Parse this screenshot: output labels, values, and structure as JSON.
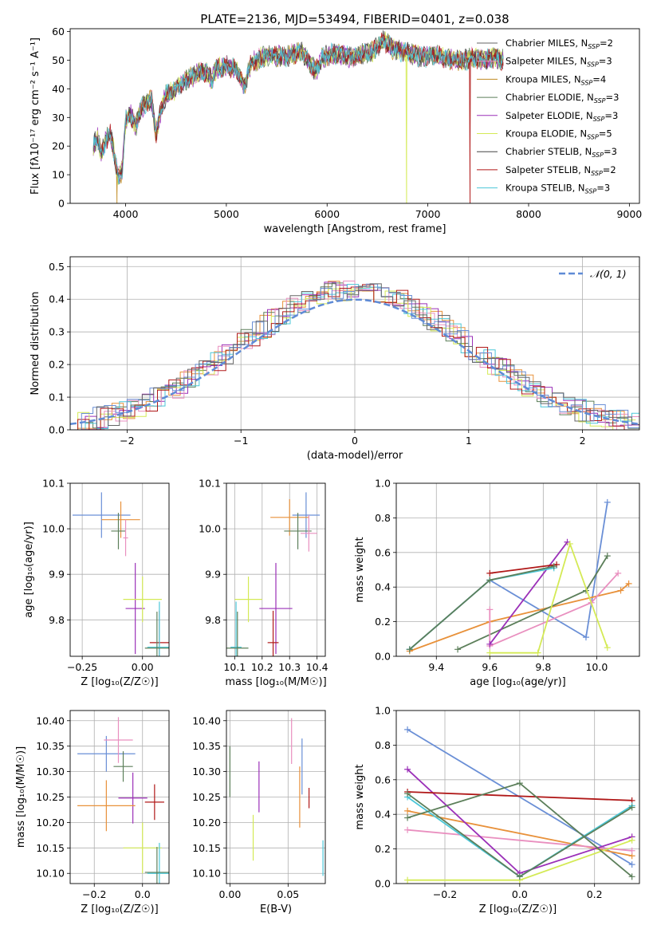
{
  "figure_title": "PLATE=2136, MJD=53494, FIBERID=0401, z=0.038",
  "colors": {
    "c0": "#6a8fd6",
    "c1": "#e8913a",
    "c2": "#5c7f5a",
    "c3": "#9b30b8",
    "c4": "#d4ea55",
    "c5": "#e98fbf",
    "c6": "#4bc7d8",
    "c7": "#b01818",
    "c8": "#666666",
    "normal": "#5f8bd6",
    "grid": "#b0b0b0"
  },
  "chart_data": [
    {
      "id": "spectrum",
      "type": "line",
      "title": "PLATE=2136, MJD=53494, FIBERID=0401, z=0.038",
      "xlabel": "wavelength [Angstrom, rest frame]",
      "ylabel": "Flux [fλ10⁻¹⁷ erg cm⁻² s⁻¹ A⁻¹]",
      "xlim": [
        3450,
        9100
      ],
      "ylim": [
        0,
        61
      ],
      "xticks": [
        4000,
        5000,
        6000,
        7000,
        8000,
        9000
      ],
      "yticks": [
        0,
        10,
        20,
        30,
        40,
        50,
        60
      ],
      "grid": false,
      "legend_position": "top-right",
      "legend": [
        {
          "label": "Chabrier MILES, N",
          "sub": "SSP",
          "tail": "=2",
          "color": "#666666"
        },
        {
          "label": "Salpeter MILES, N",
          "sub": "SSP",
          "tail": "=3",
          "color": "#e98fbf"
        },
        {
          "label": "Kroupa MILES, N",
          "sub": "SSP",
          "tail": "=4",
          "color": "#c08a20"
        },
        {
          "label": "Chabrier ELODIE, N",
          "sub": "SSP",
          "tail": "=3",
          "color": "#5c7f5a"
        },
        {
          "label": "Salpeter ELODIE, N",
          "sub": "SSP",
          "tail": "=3",
          "color": "#9b30b8"
        },
        {
          "label": "Kroupa ELODIE, N",
          "sub": "SSP",
          "tail": "=5",
          "color": "#d4ea55"
        },
        {
          "label": "Chabrier STELIB, N",
          "sub": "SSP",
          "tail": "=3",
          "color": "#444444"
        },
        {
          "label": "Salpeter STELIB, N",
          "sub": "SSP",
          "tail": "=2",
          "color": "#b01818"
        },
        {
          "label": "Kroupa STELIB, N",
          "sub": "SSP",
          "tail": "=3",
          "color": "#4bc7d8"
        }
      ],
      "spectrum_profile": {
        "x": [
          3680,
          3720,
          3760,
          3800,
          3850,
          3900,
          3933,
          3968,
          4000,
          4050,
          4102,
          4150,
          4200,
          4260,
          4300,
          4340,
          4400,
          4500,
          4600,
          4700,
          4800,
          4861,
          4900,
          5000,
          5100,
          5175,
          5250,
          5350,
          5450,
          5550,
          5650,
          5750,
          5890,
          5950,
          6050,
          6150,
          6250,
          6350,
          6450,
          6563,
          6650,
          6750,
          6850,
          6950,
          7050,
          7150,
          7250,
          7350,
          7450,
          7550,
          7650,
          7750
        ],
        "y": [
          20,
          23,
          17,
          22,
          24,
          15,
          8,
          12,
          29,
          31,
          27,
          33,
          35,
          36,
          24,
          31,
          38,
          40,
          43,
          45,
          46,
          43,
          47,
          48,
          47,
          41,
          49,
          51,
          52,
          51,
          52,
          53,
          46,
          51,
          52,
          52,
          51,
          52,
          53,
          57,
          54,
          53,
          52,
          51,
          52,
          51,
          50,
          50,
          51,
          50,
          51,
          50
        ]
      },
      "drops": [
        {
          "x": 3915,
          "to": 0,
          "series": "Kroupa MILES"
        },
        {
          "x": 6790,
          "to": 0,
          "series": "Kroupa ELODIE"
        },
        {
          "x": 7420,
          "to": 0,
          "series": "Salpeter STELIB"
        }
      ]
    },
    {
      "id": "residuals",
      "type": "histogram",
      "xlabel": "(data-model)/error",
      "ylabel": "Normed distribution",
      "xlim": [
        -2.5,
        2.5
      ],
      "ylim": [
        0,
        0.53
      ],
      "xticks": [
        -2,
        -1,
        0,
        1,
        2
      ],
      "yticks": [
        0.0,
        0.1,
        0.2,
        0.3,
        0.4,
        0.5
      ],
      "grid": true,
      "legend_position": "top-right",
      "legend": [
        {
          "label": "𝒩(0, 1)",
          "color": "#5f8bd6",
          "style": "dashed"
        }
      ],
      "bin_width": 0.1,
      "normal_curve": {
        "mean": 0,
        "sigma": 1
      }
    },
    {
      "id": "age-vs-Z",
      "type": "errorbar",
      "xlabel": "Z [log₁₀(Z/Z☉)]",
      "ylabel": "age  [log₁₀(age/yr)]",
      "xlim": [
        -0.3,
        0.11
      ],
      "ylim": [
        9.72,
        10.1
      ],
      "xticks": [
        -0.25,
        0.0
      ],
      "yticks": [
        9.8,
        9.9,
        10.0,
        10.1
      ],
      "grid": true,
      "points": [
        {
          "x": -0.17,
          "xerr": 0.12,
          "y": 10.03,
          "yerr": 0.05,
          "color": "#6a8fd6"
        },
        {
          "x": -0.09,
          "xerr": 0.08,
          "y": 10.02,
          "yerr": 0.04,
          "color": "#e8913a"
        },
        {
          "x": -0.1,
          "xerr": 0.03,
          "y": 9.995,
          "yerr": 0.04,
          "color": "#5c7f5a"
        },
        {
          "x": -0.07,
          "xerr": 0.01,
          "y": 9.98,
          "yerr": 0.04,
          "color": "#e98fbf"
        },
        {
          "x": -0.03,
          "xerr": 0.04,
          "y": 9.825,
          "yerr": 0.1,
          "color": "#9b30b8"
        },
        {
          "x": 0.0,
          "xerr": 0.08,
          "y": 9.845,
          "yerr": 0.05,
          "color": "#d4ea55"
        },
        {
          "x": 0.07,
          "xerr": 0.04,
          "y": 9.75,
          "yerr": 0.07,
          "color": "#b01818"
        },
        {
          "x": 0.07,
          "xerr": 0.05,
          "y": 9.74,
          "yerr": 0.1,
          "color": "#4bc7d8"
        },
        {
          "x": 0.06,
          "xerr": 0.05,
          "y": 9.738,
          "yerr": 0.08,
          "color": "#5c7f5a"
        }
      ]
    },
    {
      "id": "age-vs-mass",
      "type": "errorbar",
      "xlabel": "mass [log₁₀(M/M☉)]",
      "ylabel": "",
      "xlim": [
        10.07,
        10.43
      ],
      "ylim": [
        9.72,
        10.1
      ],
      "xticks": [
        10.1,
        10.2,
        10.3,
        10.4
      ],
      "yticks": [
        9.8,
        9.9,
        10.0,
        10.1
      ],
      "grid": true,
      "points": [
        {
          "x": 10.36,
          "xerr": 0.05,
          "y": 10.03,
          "yerr": 0.05,
          "color": "#6a8fd6"
        },
        {
          "x": 10.3,
          "xerr": 0.07,
          "y": 10.025,
          "yerr": 0.04,
          "color": "#e8913a"
        },
        {
          "x": 10.33,
          "xerr": 0.05,
          "y": 9.995,
          "yerr": 0.04,
          "color": "#5c7f5a"
        },
        {
          "x": 10.37,
          "xerr": 0.03,
          "y": 9.99,
          "yerr": 0.04,
          "color": "#e98fbf"
        },
        {
          "x": 10.25,
          "xerr": 0.06,
          "y": 9.825,
          "yerr": 0.1,
          "color": "#9b30b8"
        },
        {
          "x": 10.15,
          "xerr": 0.05,
          "y": 9.845,
          "yerr": 0.05,
          "color": "#d4ea55"
        },
        {
          "x": 10.24,
          "xerr": 0.02,
          "y": 9.75,
          "yerr": 0.07,
          "color": "#b01818"
        },
        {
          "x": 10.105,
          "xerr": 0.02,
          "y": 9.74,
          "yerr": 0.1,
          "color": "#4bc7d8"
        },
        {
          "x": 10.11,
          "xerr": 0.04,
          "y": 9.738,
          "yerr": 0.08,
          "color": "#5c7f5a"
        }
      ]
    },
    {
      "id": "weight-vs-age",
      "type": "line",
      "xlabel": "age  [log₁₀(age/yr)]",
      "ylabel": "mass weight",
      "xlim": [
        9.25,
        10.16
      ],
      "ylim": [
        0,
        1
      ],
      "xticks": [
        9.4,
        9.6,
        9.8,
        10.0
      ],
      "yticks": [
        0.0,
        0.2,
        0.4,
        0.6,
        0.8,
        1.0
      ],
      "grid": true,
      "series": [
        {
          "color": "#6a8fd6",
          "x": [
            9.3,
            9.6,
            9.96,
            10.04
          ],
          "y": [
            0.04,
            0.44,
            0.11,
            0.89
          ]
        },
        {
          "color": "#e8913a",
          "x": [
            9.3,
            9.6,
            10.09,
            10.12
          ],
          "y": [
            0.03,
            0.2,
            0.38,
            0.42
          ]
        },
        {
          "color": "#5c7f5a",
          "x": [
            9.48,
            9.96,
            10.04
          ],
          "y": [
            0.04,
            0.38,
            0.58
          ]
        },
        {
          "color": "#e98fbf",
          "x": [
            9.6,
            9.6,
            9.98,
            10.08
          ],
          "y": [
            0.27,
            0.06,
            0.31,
            0.48
          ]
        },
        {
          "color": "#9b30b8",
          "x": [
            9.6,
            9.89
          ],
          "y": [
            0.07,
            0.66
          ]
        },
        {
          "color": "#d4ea55",
          "x": [
            9.6,
            9.78,
            9.9,
            10.04
          ],
          "y": [
            0.02,
            0.02,
            0.65,
            0.05
          ]
        },
        {
          "color": "#b01818",
          "x": [
            9.6,
            9.85
          ],
          "y": [
            0.48,
            0.53
          ]
        },
        {
          "color": "#4bc7d8",
          "x": [
            9.3,
            9.6,
            9.84
          ],
          "y": [
            0.04,
            0.44,
            0.51
          ]
        },
        {
          "color": "#5c7f5a",
          "x": [
            9.3,
            9.6,
            9.84
          ],
          "y": [
            0.04,
            0.44,
            0.52
          ]
        }
      ]
    },
    {
      "id": "mass-vs-Z",
      "type": "errorbar",
      "xlabel": "Z [log₁₀(Z/Z☉)]",
      "ylabel": "mass [log₁₀(M/M☉)]",
      "xlim": [
        -0.3,
        0.11
      ],
      "ylim": [
        10.08,
        10.42
      ],
      "xticks": [
        -0.2,
        0.0
      ],
      "yticks": [
        10.1,
        10.15,
        10.2,
        10.25,
        10.3,
        10.35,
        10.4
      ],
      "grid": true,
      "points": [
        {
          "x": -0.15,
          "xerr": 0.12,
          "y": 10.335,
          "yerr": 0.035,
          "color": "#6a8fd6"
        },
        {
          "x": -0.1,
          "xerr": 0.06,
          "y": 10.362,
          "yerr": 0.045,
          "color": "#e98fbf"
        },
        {
          "x": -0.08,
          "xerr": 0.04,
          "y": 10.31,
          "yerr": 0.03,
          "color": "#5c7f5a"
        },
        {
          "x": -0.04,
          "xerr": 0.06,
          "y": 10.248,
          "yerr": 0.05,
          "color": "#9b30b8"
        },
        {
          "x": -0.15,
          "xerr": 0.12,
          "y": 10.233,
          "yerr": 0.05,
          "color": "#e8913a"
        },
        {
          "x": 0.0,
          "xerr": 0.08,
          "y": 10.15,
          "yerr": 0.05,
          "color": "#d4ea55"
        },
        {
          "x": 0.05,
          "xerr": 0.04,
          "y": 10.24,
          "yerr": 0.035,
          "color": "#b01818"
        },
        {
          "x": 0.07,
          "xerr": 0.05,
          "y": 10.1,
          "yerr": 0.06,
          "color": "#4bc7d8"
        },
        {
          "x": 0.06,
          "xerr": 0.05,
          "y": 10.102,
          "yerr": 0.05,
          "color": "#5c7f5a"
        }
      ]
    },
    {
      "id": "mass-vs-ebv",
      "type": "errorbar",
      "xlabel": "E(B-V)",
      "ylabel": "",
      "xlim": [
        -0.003,
        0.082
      ],
      "ylim": [
        10.08,
        10.42
      ],
      "xticks": [
        0.0,
        0.05
      ],
      "yticks": [
        10.1,
        10.15,
        10.2,
        10.25,
        10.3,
        10.35,
        10.4
      ],
      "grid": true,
      "points": [
        {
          "x": 0.0,
          "y": 10.3,
          "yerr": 0.05,
          "color": "#5c7f5a"
        },
        {
          "x": 0.02,
          "y": 10.17,
          "yerr": 0.045,
          "color": "#d4ea55"
        },
        {
          "x": 0.025,
          "y": 10.27,
          "yerr": 0.05,
          "color": "#9b30b8"
        },
        {
          "x": 0.053,
          "y": 10.36,
          "yerr": 0.045,
          "color": "#e98fbf"
        },
        {
          "x": 0.06,
          "y": 10.25,
          "yerr": 0.06,
          "color": "#e8913a"
        },
        {
          "x": 0.062,
          "y": 10.31,
          "yerr": 0.055,
          "color": "#6a8fd6"
        },
        {
          "x": 0.068,
          "y": 10.248,
          "yerr": 0.02,
          "color": "#b01818"
        },
        {
          "x": 0.08,
          "y": 10.13,
          "yerr": 0.035,
          "color": "#4bc7d8"
        }
      ]
    },
    {
      "id": "weight-vs-Z",
      "type": "line",
      "xlabel": "Z [log₁₀(Z/Z☉)]",
      "ylabel": "mass weight",
      "xlim": [
        -0.33,
        0.32
      ],
      "ylim": [
        0,
        1
      ],
      "xticks": [
        -0.2,
        0.0,
        0.2
      ],
      "yticks": [
        0.0,
        0.2,
        0.4,
        0.6,
        0.8,
        1.0
      ],
      "grid": true,
      "series": [
        {
          "color": "#6a8fd6",
          "x": [
            -0.3,
            0.3
          ],
          "y": [
            0.89,
            0.11
          ]
        },
        {
          "color": "#e8913a",
          "x": [
            -0.3,
            0.3
          ],
          "y": [
            0.42,
            0.16
          ]
        },
        {
          "color": "#e98fbf",
          "x": [
            -0.3,
            0.3
          ],
          "y": [
            0.31,
            0.19
          ]
        },
        {
          "color": "#9b30b8",
          "x": [
            -0.3,
            0.0,
            0.3
          ],
          "y": [
            0.66,
            0.06,
            0.27
          ]
        },
        {
          "color": "#d4ea55",
          "x": [
            -0.3,
            0.0,
            0.3
          ],
          "y": [
            0.02,
            0.02,
            0.25
          ]
        },
        {
          "color": "#b01818",
          "x": [
            -0.3,
            0.3
          ],
          "y": [
            0.53,
            0.48
          ]
        },
        {
          "color": "#4bc7d8",
          "x": [
            -0.3,
            0.0,
            0.3
          ],
          "y": [
            0.5,
            0.04,
            0.45
          ]
        },
        {
          "color": "#5c7f5a",
          "x": [
            -0.3,
            0.0,
            0.3
          ],
          "y": [
            0.38,
            0.58,
            0.04
          ]
        },
        {
          "color": "#5c7f5a",
          "x": [
            -0.3,
            0.0,
            0.3
          ],
          "y": [
            0.52,
            0.04,
            0.44
          ]
        }
      ]
    }
  ]
}
